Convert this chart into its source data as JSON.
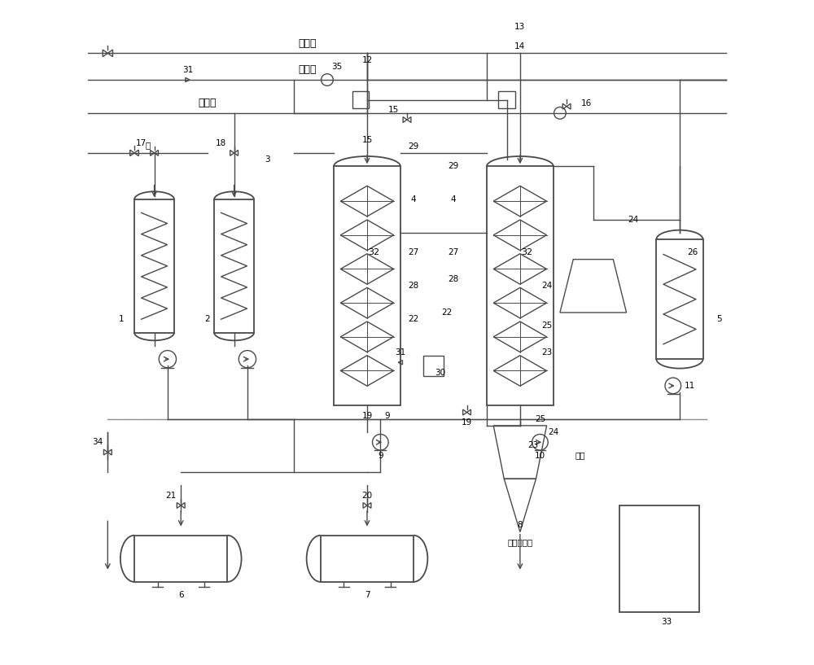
{
  "title": "",
  "bg_color": "#ffffff",
  "line_color": "#4a4a4a",
  "text_color": "#000000",
  "figsize": [
    10.0,
    8.17
  ],
  "dpi": 100,
  "labels": {
    "biomass": "生物质",
    "steam": "蒸　汽",
    "catalyst": "催化剂",
    "water": "水",
    "waste": "废渣",
    "catalyst_recovery": "催化剂回收"
  }
}
